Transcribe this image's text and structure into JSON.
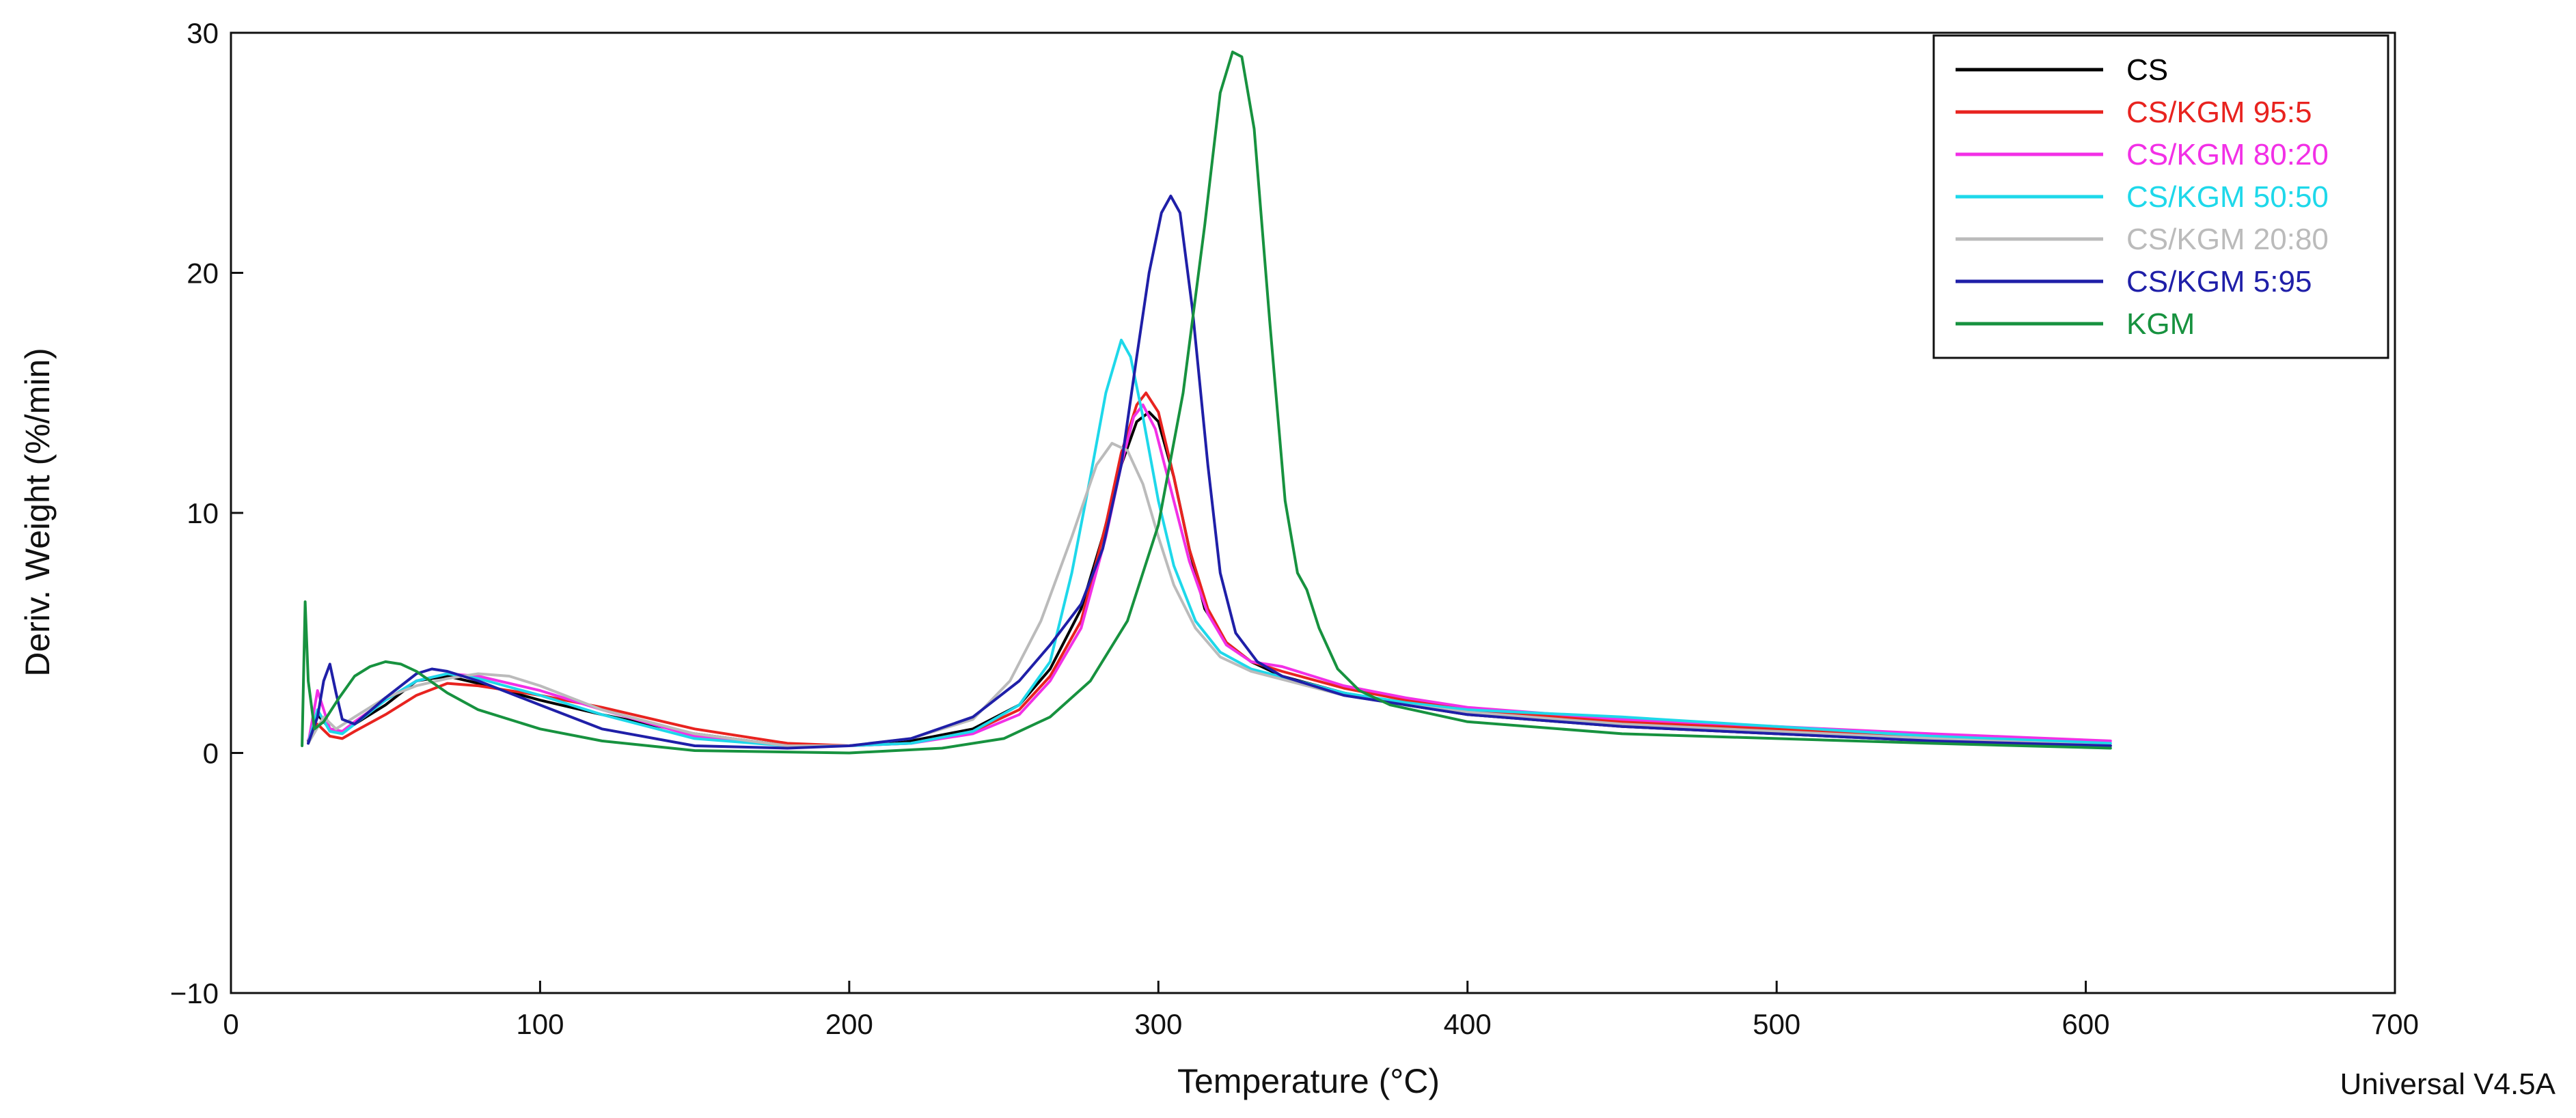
{
  "chart_data": {
    "type": "line",
    "xlabel": "Temperature (°C)",
    "ylabel": "Deriv. Weight (%/min)",
    "xlim": [
      0,
      700
    ],
    "ylim": [
      -10,
      30
    ],
    "xticks": [
      0,
      100,
      200,
      300,
      400,
      500,
      600,
      700
    ],
    "yticks": [
      -10,
      0,
      10,
      20,
      30
    ],
    "tick_labels_x": [
      "0",
      "100",
      "200",
      "300",
      "400",
      "500",
      "600",
      "700"
    ],
    "tick_labels_y": [
      "−10",
      "0",
      "10",
      "20",
      "30"
    ],
    "grid": false,
    "legend_position": "top-right",
    "footer": "Universal V4.5A",
    "series": [
      {
        "name": "CS",
        "color": "#000000",
        "points": [
          [
            25,
            0.5
          ],
          [
            28,
            1.6
          ],
          [
            32,
            1.0
          ],
          [
            36,
            0.9
          ],
          [
            40,
            1.2
          ],
          [
            50,
            2.0
          ],
          [
            60,
            3.0
          ],
          [
            70,
            3.2
          ],
          [
            80,
            2.9
          ],
          [
            100,
            2.2
          ],
          [
            120,
            1.6
          ],
          [
            150,
            0.8
          ],
          [
            180,
            0.3
          ],
          [
            200,
            0.3
          ],
          [
            220,
            0.5
          ],
          [
            240,
            1.0
          ],
          [
            255,
            2.0
          ],
          [
            265,
            3.5
          ],
          [
            275,
            6.0
          ],
          [
            282,
            9.0
          ],
          [
            288,
            12.0
          ],
          [
            293,
            13.8
          ],
          [
            297,
            14.2
          ],
          [
            300,
            13.8
          ],
          [
            305,
            11.5
          ],
          [
            310,
            8.5
          ],
          [
            315,
            6.0
          ],
          [
            322,
            4.6
          ],
          [
            330,
            3.8
          ],
          [
            340,
            3.2
          ],
          [
            360,
            2.5
          ],
          [
            380,
            2.0
          ],
          [
            400,
            1.6
          ],
          [
            450,
            1.1
          ],
          [
            500,
            0.8
          ],
          [
            550,
            0.5
          ],
          [
            608,
            0.3
          ]
        ]
      },
      {
        "name": "CS/KGM 95:5",
        "color": "#e8231f",
        "points": [
          [
            25,
            0.4
          ],
          [
            28,
            1.2
          ],
          [
            32,
            0.7
          ],
          [
            36,
            0.6
          ],
          [
            40,
            0.9
          ],
          [
            50,
            1.6
          ],
          [
            60,
            2.4
          ],
          [
            70,
            2.9
          ],
          [
            80,
            2.8
          ],
          [
            100,
            2.4
          ],
          [
            120,
            1.9
          ],
          [
            150,
            1.0
          ],
          [
            180,
            0.4
          ],
          [
            200,
            0.3
          ],
          [
            220,
            0.4
          ],
          [
            240,
            0.9
          ],
          [
            255,
            1.8
          ],
          [
            265,
            3.2
          ],
          [
            275,
            5.5
          ],
          [
            283,
            9.5
          ],
          [
            288,
            12.5
          ],
          [
            293,
            14.5
          ],
          [
            296,
            15.0
          ],
          [
            300,
            14.2
          ],
          [
            305,
            11.5
          ],
          [
            310,
            8.5
          ],
          [
            316,
            6.0
          ],
          [
            322,
            4.6
          ],
          [
            330,
            3.8
          ],
          [
            340,
            3.4
          ],
          [
            360,
            2.7
          ],
          [
            380,
            2.2
          ],
          [
            400,
            1.8
          ],
          [
            450,
            1.3
          ],
          [
            500,
            1.0
          ],
          [
            550,
            0.7
          ],
          [
            585,
            0.5
          ]
        ]
      },
      {
        "name": "CS/KGM 80:20",
        "color": "#f230e6",
        "points": [
          [
            25,
            0.4
          ],
          [
            28,
            2.6
          ],
          [
            32,
            1.0
          ],
          [
            36,
            0.9
          ],
          [
            40,
            1.3
          ],
          [
            50,
            2.2
          ],
          [
            60,
            3.0
          ],
          [
            70,
            3.3
          ],
          [
            80,
            3.2
          ],
          [
            100,
            2.6
          ],
          [
            120,
            1.8
          ],
          [
            150,
            0.7
          ],
          [
            180,
            0.3
          ],
          [
            200,
            0.3
          ],
          [
            220,
            0.4
          ],
          [
            240,
            0.8
          ],
          [
            255,
            1.6
          ],
          [
            265,
            3.0
          ],
          [
            275,
            5.2
          ],
          [
            283,
            9.0
          ],
          [
            288,
            12.0
          ],
          [
            292,
            14.0
          ],
          [
            295,
            14.5
          ],
          [
            299,
            13.5
          ],
          [
            304,
            11.0
          ],
          [
            310,
            8.0
          ],
          [
            316,
            5.8
          ],
          [
            322,
            4.5
          ],
          [
            330,
            3.8
          ],
          [
            340,
            3.6
          ],
          [
            360,
            2.8
          ],
          [
            380,
            2.3
          ],
          [
            400,
            1.9
          ],
          [
            450,
            1.4
          ],
          [
            500,
            1.1
          ],
          [
            550,
            0.8
          ],
          [
            608,
            0.5
          ]
        ]
      },
      {
        "name": "CS/KGM 50:50",
        "color": "#1ed8ea",
        "points": [
          [
            25,
            0.4
          ],
          [
            28,
            1.8
          ],
          [
            32,
            0.9
          ],
          [
            36,
            0.8
          ],
          [
            40,
            1.2
          ],
          [
            50,
            2.2
          ],
          [
            60,
            3.0
          ],
          [
            70,
            3.3
          ],
          [
            80,
            3.1
          ],
          [
            100,
            2.4
          ],
          [
            120,
            1.6
          ],
          [
            150,
            0.6
          ],
          [
            180,
            0.3
          ],
          [
            200,
            0.3
          ],
          [
            220,
            0.4
          ],
          [
            240,
            0.9
          ],
          [
            255,
            2.0
          ],
          [
            265,
            3.8
          ],
          [
            272,
            7.5
          ],
          [
            278,
            11.5
          ],
          [
            283,
            15.0
          ],
          [
            288,
            17.2
          ],
          [
            291,
            16.5
          ],
          [
            295,
            14.0
          ],
          [
            300,
            10.5
          ],
          [
            305,
            7.8
          ],
          [
            312,
            5.5
          ],
          [
            320,
            4.2
          ],
          [
            330,
            3.5
          ],
          [
            345,
            3.0
          ],
          [
            360,
            2.5
          ],
          [
            380,
            2.1
          ],
          [
            400,
            1.8
          ],
          [
            450,
            1.5
          ],
          [
            500,
            1.1
          ],
          [
            550,
            0.7
          ],
          [
            608,
            0.4
          ]
        ]
      },
      {
        "name": "CS/KGM 20:80",
        "color": "#bbbbbb",
        "points": [
          [
            25,
            0.4
          ],
          [
            30,
            1.5
          ],
          [
            34,
            1.0
          ],
          [
            40,
            1.5
          ],
          [
            50,
            2.3
          ],
          [
            60,
            2.8
          ],
          [
            70,
            3.1
          ],
          [
            80,
            3.3
          ],
          [
            90,
            3.2
          ],
          [
            100,
            2.8
          ],
          [
            110,
            2.3
          ],
          [
            120,
            1.8
          ],
          [
            150,
            0.8
          ],
          [
            180,
            0.3
          ],
          [
            200,
            0.3
          ],
          [
            220,
            0.6
          ],
          [
            240,
            1.4
          ],
          [
            252,
            3.0
          ],
          [
            262,
            5.5
          ],
          [
            272,
            9.0
          ],
          [
            280,
            12.0
          ],
          [
            285,
            12.9
          ],
          [
            290,
            12.6
          ],
          [
            295,
            11.2
          ],
          [
            300,
            9.0
          ],
          [
            305,
            7.0
          ],
          [
            312,
            5.2
          ],
          [
            320,
            4.0
          ],
          [
            330,
            3.4
          ],
          [
            345,
            2.9
          ],
          [
            360,
            2.4
          ],
          [
            380,
            2.0
          ],
          [
            400,
            1.7
          ],
          [
            450,
            1.2
          ],
          [
            500,
            0.9
          ],
          [
            550,
            0.6
          ],
          [
            608,
            0.3
          ]
        ]
      },
      {
        "name": "CS/KGM 5:95",
        "color": "#1f1fa8",
        "points": [
          [
            25,
            0.4
          ],
          [
            28,
            1.5
          ],
          [
            30,
            3.0
          ],
          [
            32,
            3.7
          ],
          [
            34,
            2.5
          ],
          [
            36,
            1.4
          ],
          [
            40,
            1.2
          ],
          [
            50,
            2.3
          ],
          [
            60,
            3.3
          ],
          [
            65,
            3.5
          ],
          [
            70,
            3.4
          ],
          [
            80,
            3.0
          ],
          [
            100,
            2.0
          ],
          [
            120,
            1.0
          ],
          [
            150,
            0.3
          ],
          [
            180,
            0.2
          ],
          [
            200,
            0.3
          ],
          [
            220,
            0.6
          ],
          [
            240,
            1.5
          ],
          [
            255,
            3.0
          ],
          [
            265,
            4.5
          ],
          [
            275,
            6.2
          ],
          [
            282,
            8.5
          ],
          [
            288,
            12.0
          ],
          [
            293,
            16.5
          ],
          [
            297,
            20.0
          ],
          [
            301,
            22.5
          ],
          [
            304,
            23.2
          ],
          [
            307,
            22.5
          ],
          [
            311,
            18.5
          ],
          [
            316,
            12.0
          ],
          [
            320,
            7.5
          ],
          [
            325,
            5.0
          ],
          [
            332,
            3.8
          ],
          [
            340,
            3.2
          ],
          [
            360,
            2.4
          ],
          [
            380,
            2.0
          ],
          [
            400,
            1.6
          ],
          [
            450,
            1.1
          ],
          [
            500,
            0.8
          ],
          [
            550,
            0.5
          ],
          [
            608,
            0.3
          ]
        ]
      },
      {
        "name": "KGM",
        "color": "#17923f",
        "points": [
          [
            23,
            0.3
          ],
          [
            24,
            6.3
          ],
          [
            25,
            3.0
          ],
          [
            27,
            1.0
          ],
          [
            30,
            1.3
          ],
          [
            35,
            2.3
          ],
          [
            40,
            3.2
          ],
          [
            45,
            3.6
          ],
          [
            50,
            3.8
          ],
          [
            55,
            3.7
          ],
          [
            60,
            3.4
          ],
          [
            70,
            2.5
          ],
          [
            80,
            1.8
          ],
          [
            100,
            1.0
          ],
          [
            120,
            0.5
          ],
          [
            150,
            0.1
          ],
          [
            200,
            0.0
          ],
          [
            230,
            0.2
          ],
          [
            250,
            0.6
          ],
          [
            265,
            1.5
          ],
          [
            278,
            3.0
          ],
          [
            290,
            5.5
          ],
          [
            300,
            9.5
          ],
          [
            308,
            15.0
          ],
          [
            315,
            22.0
          ],
          [
            320,
            27.5
          ],
          [
            324,
            29.2
          ],
          [
            327,
            29.0
          ],
          [
            331,
            26.0
          ],
          [
            336,
            18.0
          ],
          [
            341,
            10.5
          ],
          [
            345,
            7.5
          ],
          [
            348,
            6.8
          ],
          [
            352,
            5.2
          ],
          [
            358,
            3.5
          ],
          [
            365,
            2.6
          ],
          [
            375,
            2.0
          ],
          [
            400,
            1.3
          ],
          [
            450,
            0.8
          ],
          [
            500,
            0.6
          ],
          [
            550,
            0.4
          ],
          [
            608,
            0.2
          ]
        ]
      }
    ]
  }
}
